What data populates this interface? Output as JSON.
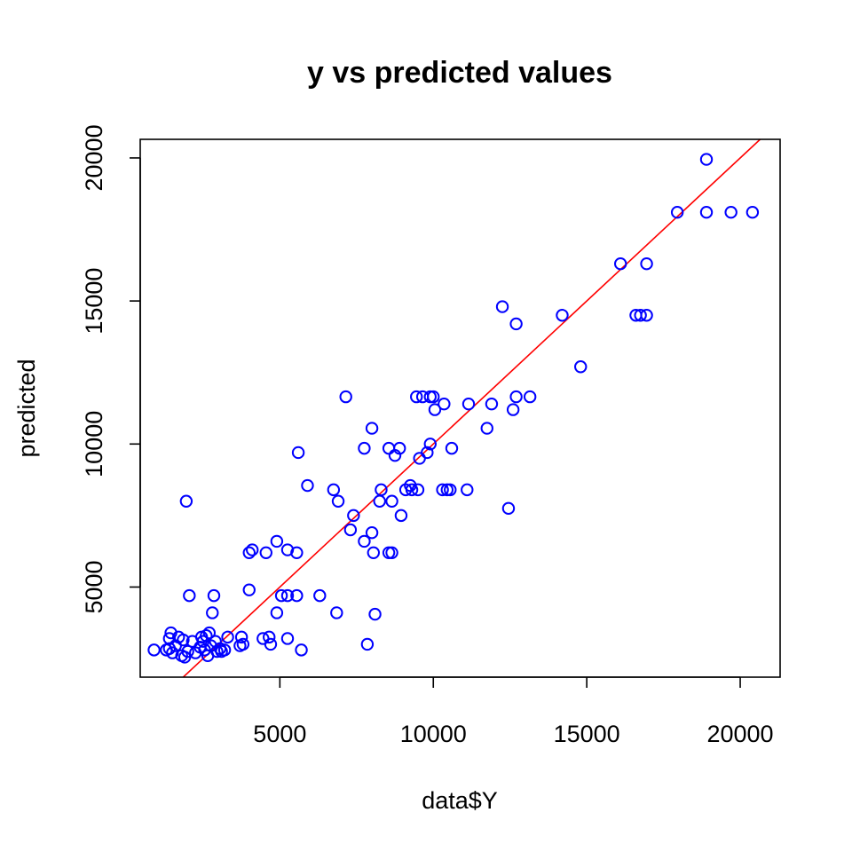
{
  "chart_data": {
    "type": "scatter",
    "title": "y vs predicted values",
    "xlabel": "data$Y",
    "ylabel": "predicted",
    "xlim": [
      450,
      21300
    ],
    "ylim": [
      1850,
      20650
    ],
    "x_ticks": [
      5000,
      10000,
      15000,
      20000
    ],
    "y_ticks": [
      5000,
      10000,
      15000,
      20000
    ],
    "grid": false,
    "legend": "none",
    "point_color": "#0000ff",
    "line_color": "#ff0000",
    "fit_line": [
      [
        1850,
        1850
      ],
      [
        20650,
        20650
      ]
    ],
    "points": [
      [
        900,
        2800
      ],
      [
        1300,
        2800
      ],
      [
        1400,
        2850
      ],
      [
        1500,
        2700
      ],
      [
        1400,
        3200
      ],
      [
        1450,
        3400
      ],
      [
        1600,
        2950
      ],
      [
        1700,
        3250
      ],
      [
        1800,
        2600
      ],
      [
        1850,
        3150
      ],
      [
        1900,
        2550
      ],
      [
        2000,
        2750
      ],
      [
        1950,
        8000
      ],
      [
        2050,
        4700
      ],
      [
        2150,
        3100
      ],
      [
        2250,
        2700
      ],
      [
        2400,
        2900
      ],
      [
        2450,
        3250
      ],
      [
        2500,
        3100
      ],
      [
        2550,
        2800
      ],
      [
        2600,
        3300
      ],
      [
        2650,
        2600
      ],
      [
        2700,
        3400
      ],
      [
        2750,
        2950
      ],
      [
        2800,
        4100
      ],
      [
        2850,
        4700
      ],
      [
        2900,
        3100
      ],
      [
        2950,
        2750
      ],
      [
        3050,
        2850
      ],
      [
        3100,
        2750
      ],
      [
        3200,
        2800
      ],
      [
        3300,
        3250
      ],
      [
        3700,
        2950
      ],
      [
        3750,
        3250
      ],
      [
        3800,
        3000
      ],
      [
        4000,
        6200
      ],
      [
        4000,
        4900
      ],
      [
        4100,
        6300
      ],
      [
        4450,
        3200
      ],
      [
        4550,
        6200
      ],
      [
        4650,
        3250
      ],
      [
        4700,
        3000
      ],
      [
        4900,
        4100
      ],
      [
        4900,
        6600
      ],
      [
        5050,
        4700
      ],
      [
        5250,
        4700
      ],
      [
        5250,
        6300
      ],
      [
        5250,
        3200
      ],
      [
        5550,
        6200
      ],
      [
        5550,
        4700
      ],
      [
        5600,
        9700
      ],
      [
        5700,
        2800
      ],
      [
        5900,
        8550
      ],
      [
        6300,
        4700
      ],
      [
        6750,
        8400
      ],
      [
        6850,
        4100
      ],
      [
        6900,
        8000
      ],
      [
        7150,
        11650
      ],
      [
        7300,
        7000
      ],
      [
        7400,
        7500
      ],
      [
        7750,
        9850
      ],
      [
        7750,
        6600
      ],
      [
        7850,
        3000
      ],
      [
        8000,
        10550
      ],
      [
        8000,
        6900
      ],
      [
        8050,
        6200
      ],
      [
        8100,
        4050
      ],
      [
        8250,
        8000
      ],
      [
        8300,
        8400
      ],
      [
        8550,
        9850
      ],
      [
        8550,
        6200
      ],
      [
        8650,
        8000
      ],
      [
        8650,
        6200
      ],
      [
        8750,
        9600
      ],
      [
        8900,
        9850
      ],
      [
        8950,
        7500
      ],
      [
        9100,
        8400
      ],
      [
        9250,
        8550
      ],
      [
        9300,
        8400
      ],
      [
        9450,
        11650
      ],
      [
        9500,
        8400
      ],
      [
        9550,
        9500
      ],
      [
        9650,
        11650
      ],
      [
        9800,
        9700
      ],
      [
        9900,
        10000
      ],
      [
        9900,
        11650
      ],
      [
        10000,
        11650
      ],
      [
        10050,
        11200
      ],
      [
        10300,
        8400
      ],
      [
        10350,
        11400
      ],
      [
        10450,
        8400
      ],
      [
        10550,
        8400
      ],
      [
        10600,
        9850
      ],
      [
        11150,
        11400
      ],
      [
        11100,
        8400
      ],
      [
        11750,
        10550
      ],
      [
        11900,
        11400
      ],
      [
        12250,
        14800
      ],
      [
        12450,
        7750
      ],
      [
        12600,
        11200
      ],
      [
        12700,
        11650
      ],
      [
        12700,
        14200
      ],
      [
        13150,
        11650
      ],
      [
        14200,
        14500
      ],
      [
        14800,
        12700
      ],
      [
        16100,
        16300
      ],
      [
        16600,
        14500
      ],
      [
        16750,
        14500
      ],
      [
        16950,
        16300
      ],
      [
        16950,
        14500
      ],
      [
        17950,
        18100
      ],
      [
        18900,
        19950
      ],
      [
        18900,
        18100
      ],
      [
        19700,
        18100
      ],
      [
        20400,
        18100
      ]
    ]
  }
}
